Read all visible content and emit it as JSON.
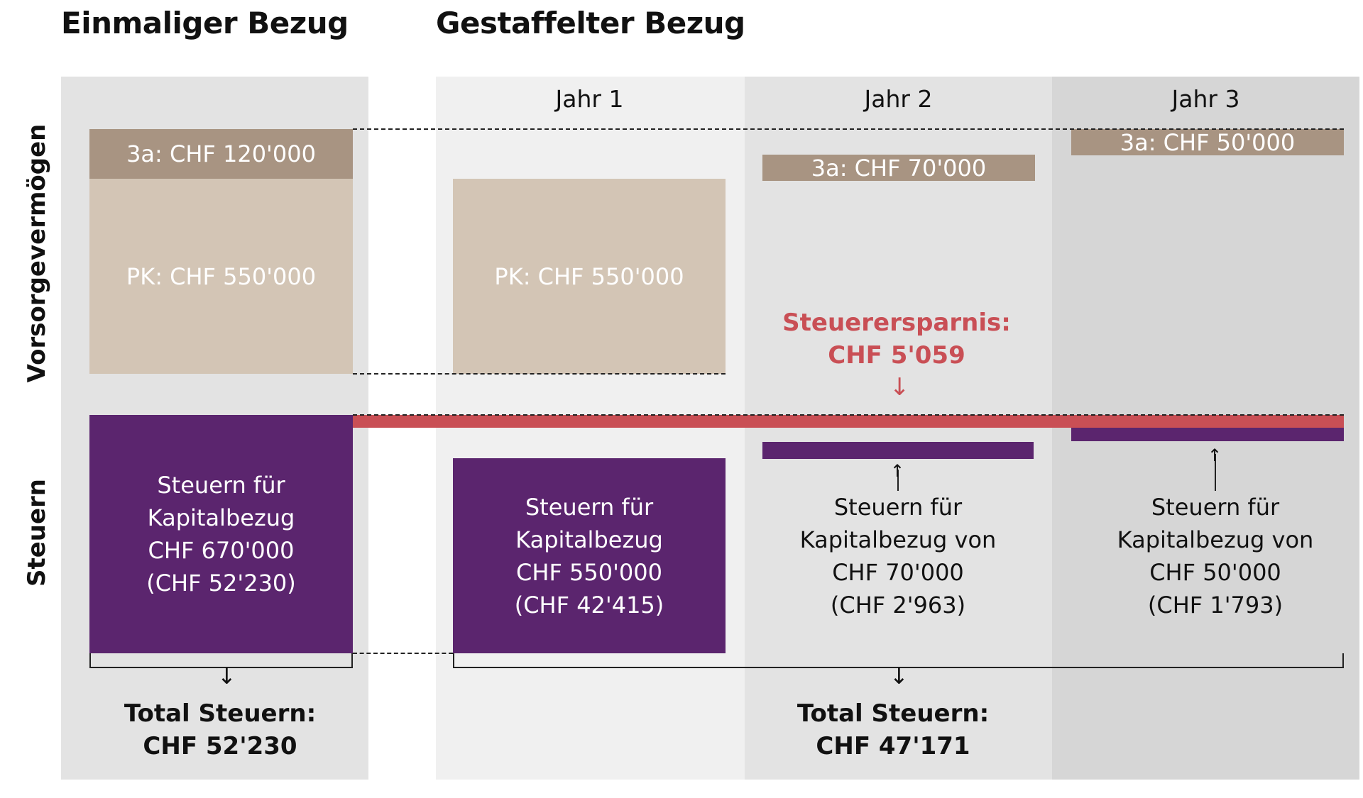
{
  "titles": {
    "single": "Einmaliger Bezug",
    "staggered": "Gestaffelter Bezug"
  },
  "side_labels": {
    "assets": "Vorsorgevermögen",
    "taxes": "Steuern"
  },
  "years": [
    "Jahr 1",
    "Jahr 2",
    "Jahr 3"
  ],
  "single": {
    "pillar3a": "3a: CHF 120'000",
    "pk": "PK: CHF 550'000",
    "tax": [
      "Steuern für",
      "Kapitalbezug",
      "CHF 670'000",
      "(CHF 52'230)"
    ],
    "total": [
      "Total Steuern:",
      "CHF 52'230"
    ]
  },
  "year1": {
    "pk": "PK: CHF 550'000",
    "tax": [
      "Steuern für",
      "Kapitalbezug",
      "CHF 550'000",
      "(CHF 42'415)"
    ]
  },
  "year2": {
    "pillar3a": "3a: CHF 70'000",
    "tax": [
      "Steuern für",
      "Kapitalbezug von",
      "CHF 70'000",
      "(CHF 2'963)"
    ]
  },
  "year3": {
    "pillar3a": "3a: CHF 50'000",
    "tax": [
      "Steuern für",
      "Kapitalbezug von",
      "CHF 50'000",
      "(CHF 1'793)"
    ]
  },
  "savings": [
    "Steuerersparnis:",
    "CHF 5'059"
  ],
  "staggered_total": [
    "Total Steuern:",
    "CHF 47'171"
  ],
  "colors": {
    "pillar3a": "#a89482",
    "pk": "#d3c5b5",
    "tax": "#5b256e",
    "savings": "#c94f55"
  }
}
